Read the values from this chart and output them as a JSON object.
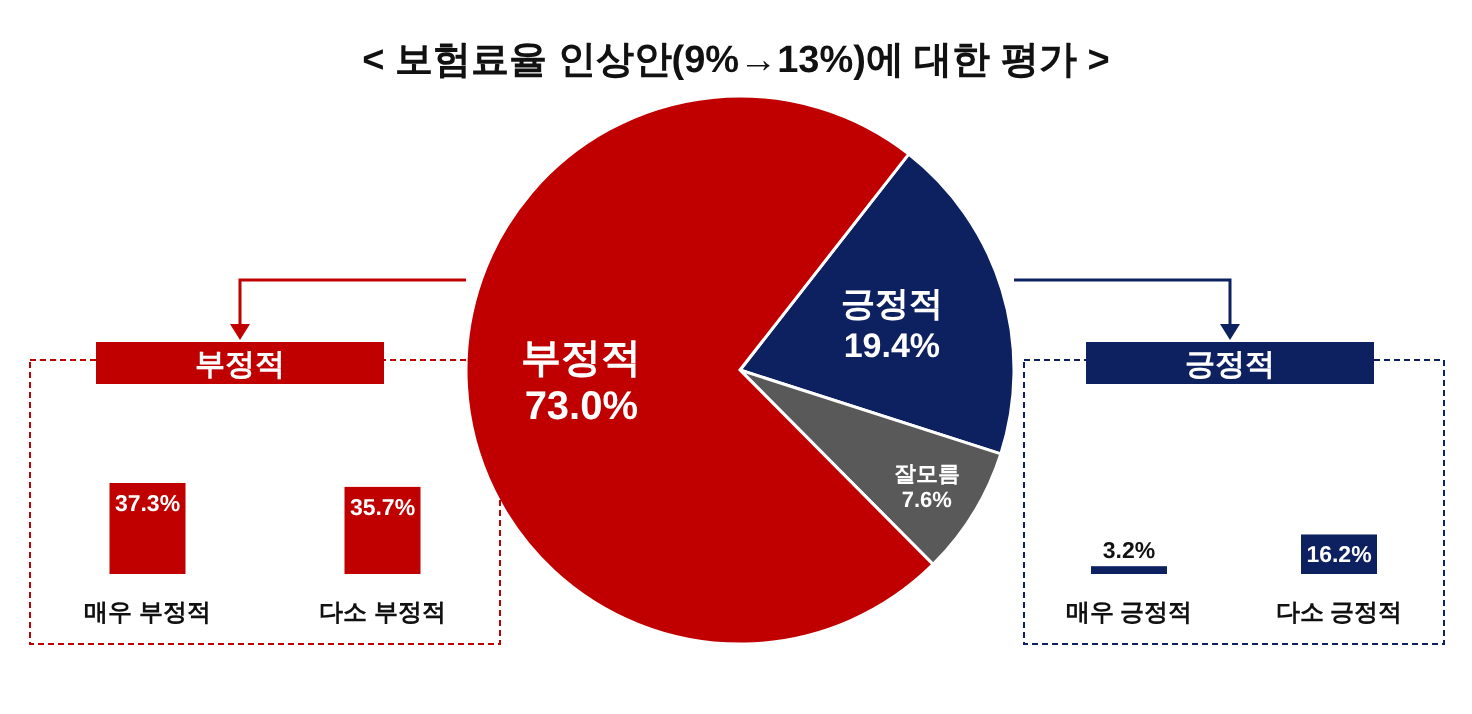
{
  "chart_data": [
    {
      "type": "pie",
      "title": "< 보험료율 인상안(9%→13%)에 대한 평가 >",
      "categories": [
        "부정적",
        "긍정적",
        "잘모름"
      ],
      "values": [
        73.0,
        19.4,
        7.6
      ],
      "value_labels": [
        "73.0%",
        "19.4%",
        "7.6%"
      ],
      "colors": [
        "#c00000",
        "#0d2060",
        "#595959"
      ]
    },
    {
      "type": "bar",
      "title": "부정적",
      "categories": [
        "매우 부정적",
        "다소 부정적"
      ],
      "values": [
        37.3,
        35.7
      ],
      "value_labels": [
        "37.3%",
        "35.7%"
      ],
      "color": "#c00000"
    },
    {
      "type": "bar",
      "title": "긍정적",
      "categories": [
        "매우 긍정적",
        "다소 긍정적"
      ],
      "values": [
        3.2,
        16.2
      ],
      "value_labels": [
        "3.2%",
        "16.2%"
      ],
      "color": "#0d2060"
    }
  ]
}
